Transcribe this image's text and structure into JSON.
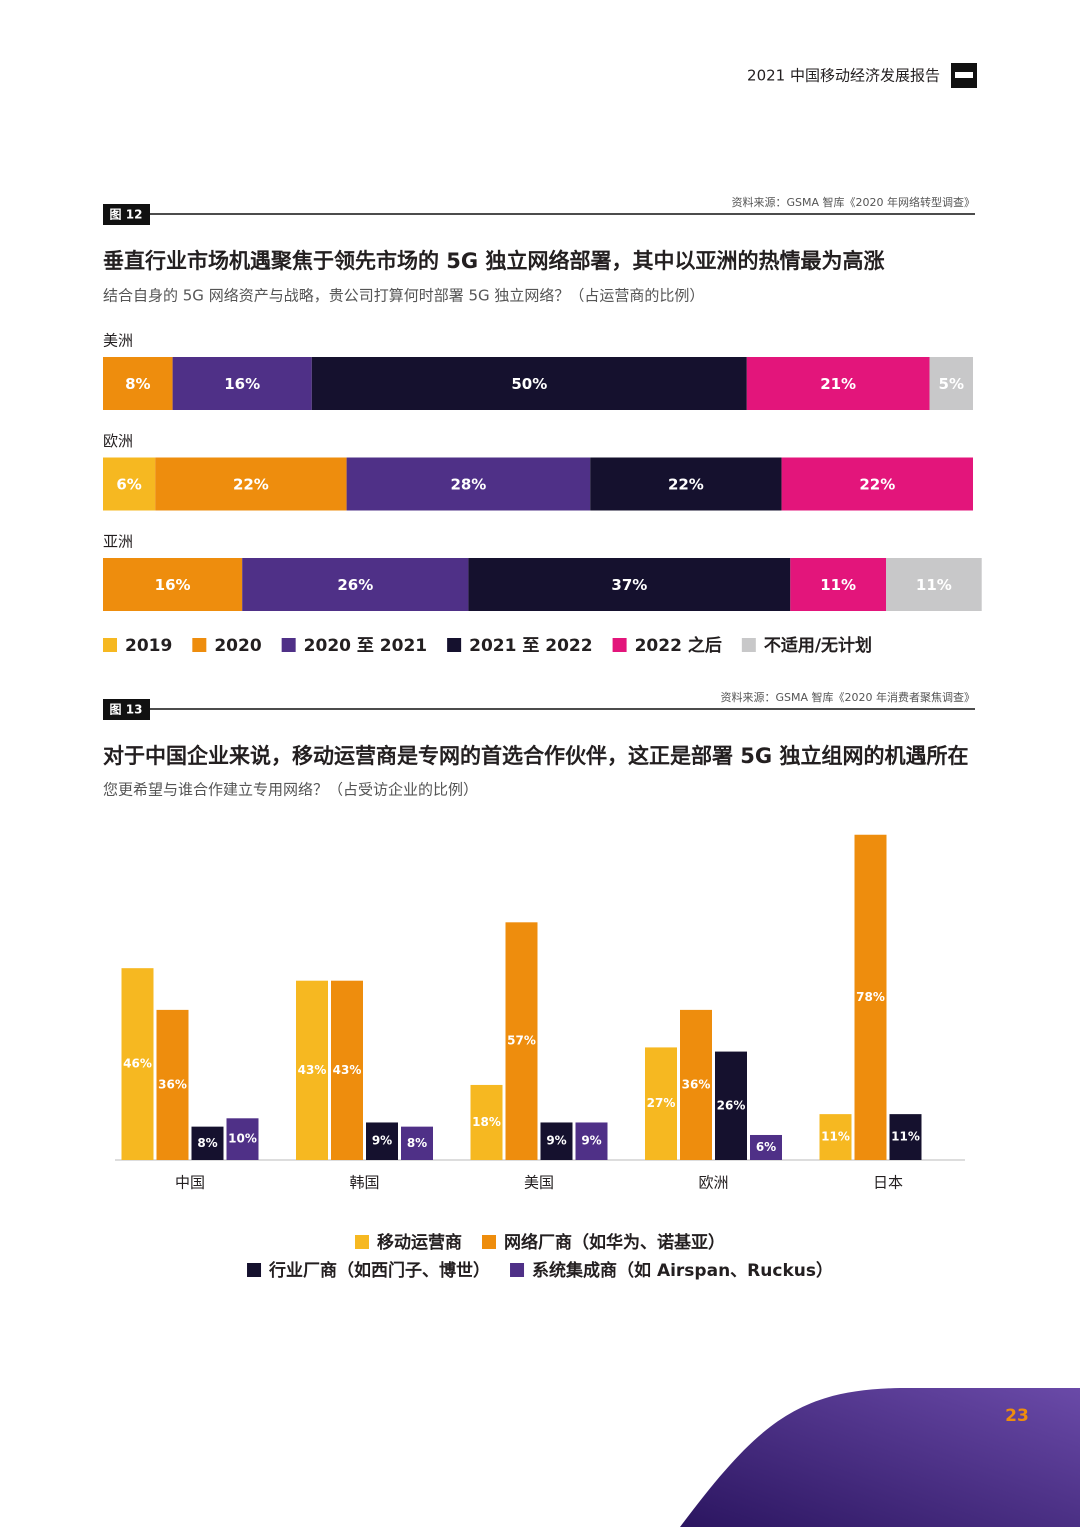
{
  "header": {
    "report_title": "2021 中国移动经济发展报告"
  },
  "page_number": "23",
  "chart_data": [
    {
      "type": "bar",
      "orientation": "horizontal",
      "stacked": true,
      "figure_label": "图 12",
      "source": "资料来源：GSMA 智库《2020 年网络转型调查》",
      "title": "垂直行业市场机遇聚焦于领先市场的 5G 独立网络部署，其中以亚洲的热情最为高涨",
      "subtitle": "结合自身的 5G 网络资产与战略，贵公司打算何时部署 5G 独立网络？（占运营商的比例）",
      "categories": [
        "美洲",
        "欧洲",
        "亚洲"
      ],
      "series": [
        {
          "name": "2019",
          "color": "#f6b821",
          "values": [
            null,
            6,
            null
          ],
          "value_labels": [
            null,
            "6%",
            null
          ]
        },
        {
          "name": "2020",
          "color": "#ee8d0d",
          "values": [
            8,
            22,
            16
          ],
          "value_labels": [
            "8%",
            "22%",
            "16%"
          ]
        },
        {
          "name": "2020 至 2021",
          "color": "#4f3087",
          "values": [
            16,
            28,
            26
          ],
          "value_labels": [
            "16%",
            "28%",
            "26%"
          ]
        },
        {
          "name": "2021 至 2022",
          "color": "#15112e",
          "values": [
            50,
            22,
            37
          ],
          "value_labels": [
            "50%",
            "22%",
            "37%"
          ]
        },
        {
          "name": "2022 之后",
          "color": "#e3157b",
          "values": [
            21,
            22,
            11
          ],
          "value_labels": [
            "21%",
            "22%",
            "11%"
          ]
        },
        {
          "name": "不适用/无计划",
          "color": "#c8c8c9",
          "values": [
            5,
            null,
            11
          ],
          "value_labels": [
            "5%",
            null,
            "11%"
          ]
        }
      ]
    },
    {
      "type": "bar",
      "figure_label": "图 13",
      "source": "资料来源：GSMA 智库《2020 年消费者聚焦调查》",
      "title": "对于中国企业来说，移动运营商是专网的首选合作伙伴，这正是部署 5G 独立组网的机遇所在",
      "subtitle": "您更希望与谁合作建立专用网络？（占受访企业的比例）",
      "categories": [
        "中国",
        "韩国",
        "美国",
        "欧洲",
        "日本"
      ],
      "series": [
        {
          "name": "移动运营商",
          "color": "#f6b821",
          "values": [
            46,
            43,
            18,
            27,
            11
          ],
          "value_labels": [
            "46%",
            "43%",
            "18%",
            "27%",
            "11%"
          ]
        },
        {
          "name": "网络厂商（如华为、诺基亚）",
          "color": "#ee8d0d",
          "values": [
            36,
            43,
            57,
            36,
            78
          ],
          "value_labels": [
            "36%",
            "43%",
            "57%",
            "36%",
            "78%"
          ]
        },
        {
          "name": "行业厂商（如西门子、博世）",
          "color": "#15112e",
          "values": [
            8,
            9,
            9,
            26,
            11
          ],
          "value_labels": [
            "8%",
            "9%",
            "9%",
            "26%",
            "11%"
          ]
        },
        {
          "name": "系统集成商（如 Airspan、Ruckus）",
          "color": "#4f3087",
          "values": [
            10,
            8,
            9,
            6,
            null
          ],
          "value_labels": [
            "10%",
            "8%",
            "9%",
            "6%",
            null
          ]
        }
      ]
    }
  ]
}
